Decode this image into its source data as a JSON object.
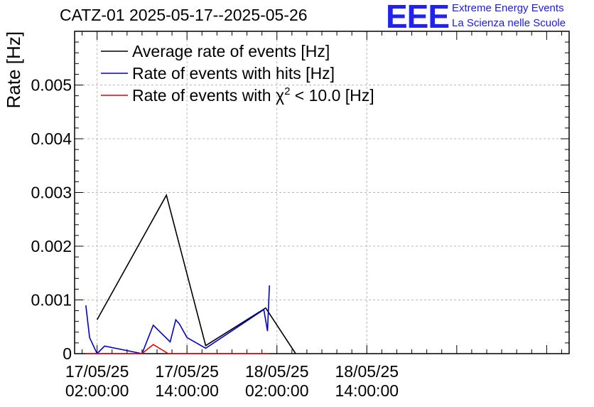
{
  "header": {
    "title": "CATZ-01 2025-05-17--2025-05-26",
    "logo_text": "EEE",
    "logo_line1": "Extreme Energy Events",
    "logo_line2": "La Scienza nelle Scuole"
  },
  "colors": {
    "average": "#000000",
    "hits": "#0000cc",
    "chi2": "#ee0000",
    "grid": "#b8b8b8",
    "logo": "#2222ee"
  },
  "chart_data": {
    "type": "line",
    "title": "CATZ-01 2025-05-17--2025-05-26",
    "xlabel": "",
    "ylabel": "Rate [Hz]",
    "xlim": [
      "2025-05-16 23:00",
      "2025-05-19 17:00"
    ],
    "ylim": [
      0,
      0.006
    ],
    "yticks": [
      0,
      0.001,
      0.002,
      0.003,
      0.004,
      0.005
    ],
    "ytick_labels": [
      "0",
      "0.001",
      "0.002",
      "0.003",
      "0.004",
      "0.005"
    ],
    "xticks": [
      {
        "x": "2025-05-17 02:00",
        "line1": "17/05/25",
        "line2": "02:00:00"
      },
      {
        "x": "2025-05-17 14:00",
        "line1": "17/05/25",
        "line2": "14:00:00"
      },
      {
        "x": "2025-05-18 02:00",
        "line1": "18/05/25",
        "line2": "02:00:00"
      },
      {
        "x": "2025-05-18 14:00",
        "line1": "18/05/25",
        "line2": "14:00:00"
      }
    ],
    "grid": true,
    "legend_position": "top-left",
    "series": [
      {
        "name": "Average rate of events [Hz]",
        "color": "#000000",
        "x": [
          "2025-05-17 02:00",
          "2025-05-17 11:15",
          "2025-05-17 16:30",
          "2025-05-18 00:30",
          "2025-05-18 04:30"
        ],
        "y": [
          0.00063,
          0.00295,
          0.00015,
          0.00085,
          0.0
        ]
      },
      {
        "name": "Rate of events with hits [Hz]",
        "color": "#0000cc",
        "x": [
          "2025-05-17 00:30",
          "2025-05-17 01:00",
          "2025-05-17 02:00",
          "2025-05-17 03:00",
          "2025-05-17 08:00",
          "2025-05-17 09:30",
          "2025-05-17 11:45",
          "2025-05-17 12:30",
          "2025-05-17 13:00",
          "2025-05-17 14:00",
          "2025-05-17 16:30",
          "2025-05-18 00:15",
          "2025-05-18 00:45",
          "2025-05-18 01:00"
        ],
        "y": [
          0.0009,
          0.0003,
          0.0,
          0.00014,
          0.0,
          0.00053,
          0.00022,
          0.00063,
          0.00055,
          0.0003,
          0.0001,
          0.00082,
          0.00042,
          0.00127
        ]
      },
      {
        "name": "Rate of events with χ² < 10.0 [Hz]",
        "color": "#ee0000",
        "x": [
          "2025-05-17 00:30",
          "2025-05-17 08:00",
          "2025-05-17 09:30",
          "2025-05-17 11:30",
          "2025-05-18 01:00"
        ],
        "y": [
          0.0,
          0.0,
          0.00017,
          0.0,
          0.0
        ]
      }
    ]
  }
}
